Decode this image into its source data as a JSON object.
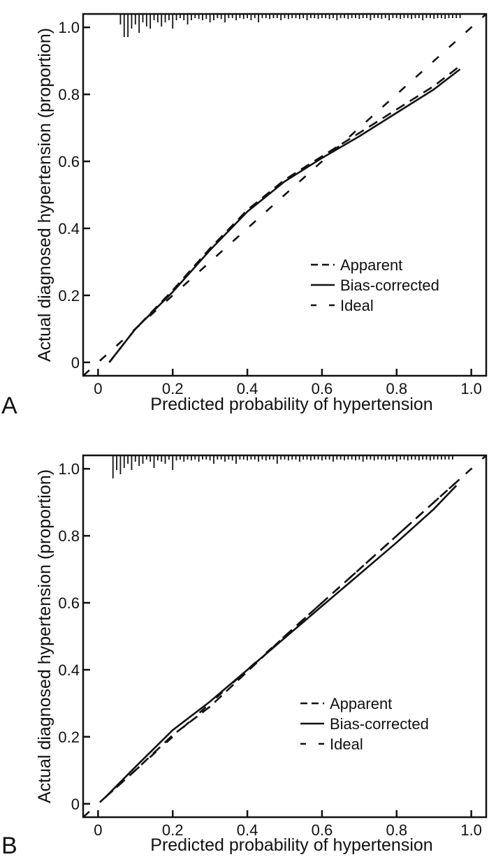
{
  "chart_data": [
    {
      "type": "line",
      "panel": "A",
      "title": "",
      "xlabel": "Predicted probability of hypertension",
      "ylabel": "Actual diagnosed hypertension (proportion)",
      "xlim": [
        -0.04,
        1.04
      ],
      "ylim": [
        -0.04,
        1.04
      ],
      "xticks": [
        0,
        0.2,
        0.4,
        0.6,
        0.8,
        1.0
      ],
      "xtick_labels": [
        "0",
        "0.2",
        "0.4",
        "0.6",
        "0.8",
        "1.0"
      ],
      "yticks": [
        0,
        0.2,
        0.4,
        0.6,
        0.8,
        1.0
      ],
      "ytick_labels": [
        "0",
        "0.2",
        "0.4",
        "0.6",
        "0.8",
        "1.0"
      ],
      "grid": false,
      "legend_position": "bottom-right",
      "legend": [
        "Apparent",
        "Bias-corrected",
        "Ideal"
      ],
      "series": [
        {
          "name": "Apparent",
          "style": "dashed",
          "x": [
            0.03,
            0.1,
            0.2,
            0.3,
            0.4,
            0.5,
            0.6,
            0.7,
            0.8,
            0.9,
            0.97
          ],
          "y": [
            0.0,
            0.1,
            0.215,
            0.34,
            0.455,
            0.545,
            0.615,
            0.685,
            0.755,
            0.825,
            0.885
          ]
        },
        {
          "name": "Bias-corrected",
          "style": "solid",
          "x": [
            0.03,
            0.1,
            0.2,
            0.3,
            0.4,
            0.5,
            0.6,
            0.7,
            0.8,
            0.9,
            0.97
          ],
          "y": [
            0.0,
            0.1,
            0.21,
            0.335,
            0.45,
            0.54,
            0.61,
            0.675,
            0.745,
            0.815,
            0.875
          ]
        },
        {
          "name": "Ideal",
          "style": "dash-gap",
          "x": [
            -0.04,
            1.04
          ],
          "y": [
            -0.04,
            1.04
          ]
        }
      ],
      "rug": [
        0.06,
        0.07,
        0.08,
        0.09,
        0.1,
        0.11,
        0.12,
        0.13,
        0.14,
        0.15,
        0.16,
        0.17,
        0.18,
        0.19,
        0.2,
        0.21,
        0.22,
        0.23,
        0.24,
        0.25,
        0.26,
        0.27,
        0.28,
        0.29,
        0.3,
        0.31,
        0.32,
        0.33,
        0.34,
        0.35,
        0.36,
        0.37,
        0.38,
        0.39,
        0.4,
        0.41,
        0.42,
        0.43,
        0.44,
        0.45,
        0.46,
        0.47,
        0.48,
        0.49,
        0.5,
        0.51,
        0.52,
        0.53,
        0.54,
        0.55,
        0.56,
        0.57,
        0.58,
        0.59,
        0.6,
        0.61,
        0.62,
        0.63,
        0.64,
        0.65,
        0.66,
        0.67,
        0.68,
        0.69,
        0.7,
        0.71,
        0.72,
        0.73,
        0.74,
        0.75,
        0.76,
        0.77,
        0.78,
        0.79,
        0.8,
        0.81,
        0.82,
        0.83,
        0.84,
        0.85,
        0.86,
        0.87,
        0.88,
        0.89,
        0.9,
        0.91,
        0.92,
        0.93,
        0.94,
        0.95,
        0.96,
        0.97
      ],
      "rug_heights": [
        0.25,
        0.55,
        0.55,
        0.35,
        0.25,
        0.45,
        0.2,
        0.3,
        0.35,
        0.15,
        0.2,
        0.3,
        0.2,
        0.15,
        0.35,
        0.15,
        0.1,
        0.15,
        0.25,
        0.15,
        0.1,
        0.12,
        0.15,
        0.12,
        0.2,
        0.15,
        0.1,
        0.12,
        0.2,
        0.1,
        0.1,
        0.15,
        0.1,
        0.12,
        0.1,
        0.15,
        0.1,
        0.2,
        0.1,
        0.1,
        0.12,
        0.1,
        0.1,
        0.15,
        0.1,
        0.12,
        0.1,
        0.1,
        0.12,
        0.1,
        0.15,
        0.1,
        0.1,
        0.12,
        0.1,
        0.1,
        0.12,
        0.1,
        0.15,
        0.1,
        0.1,
        0.12,
        0.1,
        0.1,
        0.12,
        0.1,
        0.1,
        0.15,
        0.1,
        0.1,
        0.12,
        0.1,
        0.15,
        0.1,
        0.1,
        0.12,
        0.1,
        0.1,
        0.12,
        0.1,
        0.1,
        0.15,
        0.1,
        0.1,
        0.12,
        0.1,
        0.1,
        0.12,
        0.1,
        0.1,
        0.1,
        0.1
      ]
    },
    {
      "type": "line",
      "panel": "B",
      "title": "",
      "xlabel": "Predicted probability of hypertension",
      "ylabel": "Actual diagnosed hypertension (proportion)",
      "xlim": [
        -0.04,
        1.04
      ],
      "ylim": [
        -0.04,
        1.04
      ],
      "xticks": [
        0,
        0.2,
        0.4,
        0.6,
        0.8,
        1.0
      ],
      "xtick_labels": [
        "0",
        "0.2",
        "0.4",
        "0.6",
        "0.8",
        "1.0"
      ],
      "yticks": [
        0,
        0.2,
        0.4,
        0.6,
        0.8,
        1.0
      ],
      "ytick_labels": [
        "0",
        "0.2",
        "0.4",
        "0.6",
        "0.8",
        "1.0"
      ],
      "grid": false,
      "legend_position": "bottom-right",
      "legend": [
        "Apparent",
        "Bias-corrected",
        "Ideal"
      ],
      "series": [
        {
          "name": "Apparent",
          "style": "dashed",
          "x": [
            0.02,
            0.1,
            0.2,
            0.3,
            0.4,
            0.5,
            0.6,
            0.7,
            0.8,
            0.9,
            0.97
          ],
          "y": [
            0.02,
            0.1,
            0.205,
            0.29,
            0.395,
            0.5,
            0.6,
            0.7,
            0.8,
            0.9,
            0.97
          ]
        },
        {
          "name": "Bias-corrected",
          "style": "solid",
          "x": [
            0.02,
            0.1,
            0.2,
            0.3,
            0.4,
            0.5,
            0.6,
            0.7,
            0.8,
            0.9,
            0.96
          ],
          "y": [
            0.02,
            0.11,
            0.22,
            0.305,
            0.4,
            0.495,
            0.59,
            0.685,
            0.78,
            0.88,
            0.95
          ]
        },
        {
          "name": "Ideal",
          "style": "dash-gap",
          "x": [
            -0.04,
            1.04
          ],
          "y": [
            -0.04,
            1.04
          ]
        }
      ],
      "rug": [
        0.04,
        0.05,
        0.06,
        0.07,
        0.08,
        0.09,
        0.1,
        0.11,
        0.12,
        0.13,
        0.14,
        0.15,
        0.16,
        0.17,
        0.18,
        0.19,
        0.2,
        0.21,
        0.22,
        0.23,
        0.24,
        0.25,
        0.26,
        0.27,
        0.28,
        0.29,
        0.3,
        0.31,
        0.32,
        0.33,
        0.34,
        0.35,
        0.36,
        0.37,
        0.38,
        0.39,
        0.4,
        0.41,
        0.42,
        0.43,
        0.44,
        0.45,
        0.46,
        0.47,
        0.48,
        0.49,
        0.5,
        0.51,
        0.52,
        0.53,
        0.54,
        0.55,
        0.56,
        0.57,
        0.58,
        0.59,
        0.6,
        0.61,
        0.62,
        0.63,
        0.64,
        0.65,
        0.66,
        0.67,
        0.68,
        0.69,
        0.7,
        0.71,
        0.72,
        0.73,
        0.74,
        0.75,
        0.76,
        0.77,
        0.78,
        0.79,
        0.8,
        0.81,
        0.82,
        0.83,
        0.84,
        0.85,
        0.86,
        0.87,
        0.88,
        0.89,
        0.9,
        0.91,
        0.92,
        0.93,
        0.94,
        0.95
      ],
      "rug_heights": [
        0.55,
        0.35,
        0.45,
        0.3,
        0.2,
        0.35,
        0.15,
        0.25,
        0.2,
        0.1,
        0.15,
        0.3,
        0.12,
        0.15,
        0.2,
        0.1,
        0.35,
        0.12,
        0.1,
        0.15,
        0.1,
        0.12,
        0.1,
        0.15,
        0.1,
        0.1,
        0.12,
        0.2,
        0.1,
        0.1,
        0.15,
        0.1,
        0.12,
        0.2,
        0.1,
        0.1,
        0.12,
        0.1,
        0.1,
        0.15,
        0.1,
        0.12,
        0.1,
        0.1,
        0.2,
        0.1,
        0.1,
        0.12,
        0.1,
        0.1,
        0.15,
        0.1,
        0.1,
        0.12,
        0.1,
        0.1,
        0.12,
        0.1,
        0.1,
        0.15,
        0.1,
        0.1,
        0.12,
        0.1,
        0.1,
        0.12,
        0.1,
        0.15,
        0.1,
        0.1,
        0.12,
        0.1,
        0.1,
        0.12,
        0.1,
        0.1,
        0.15,
        0.1,
        0.1,
        0.12,
        0.1,
        0.1,
        0.12,
        0.1,
        0.1,
        0.12,
        0.1,
        0.1,
        0.1,
        0.1,
        0.1,
        0.1
      ]
    }
  ],
  "panels": [
    {
      "letter": "A"
    },
    {
      "letter": "B"
    }
  ]
}
